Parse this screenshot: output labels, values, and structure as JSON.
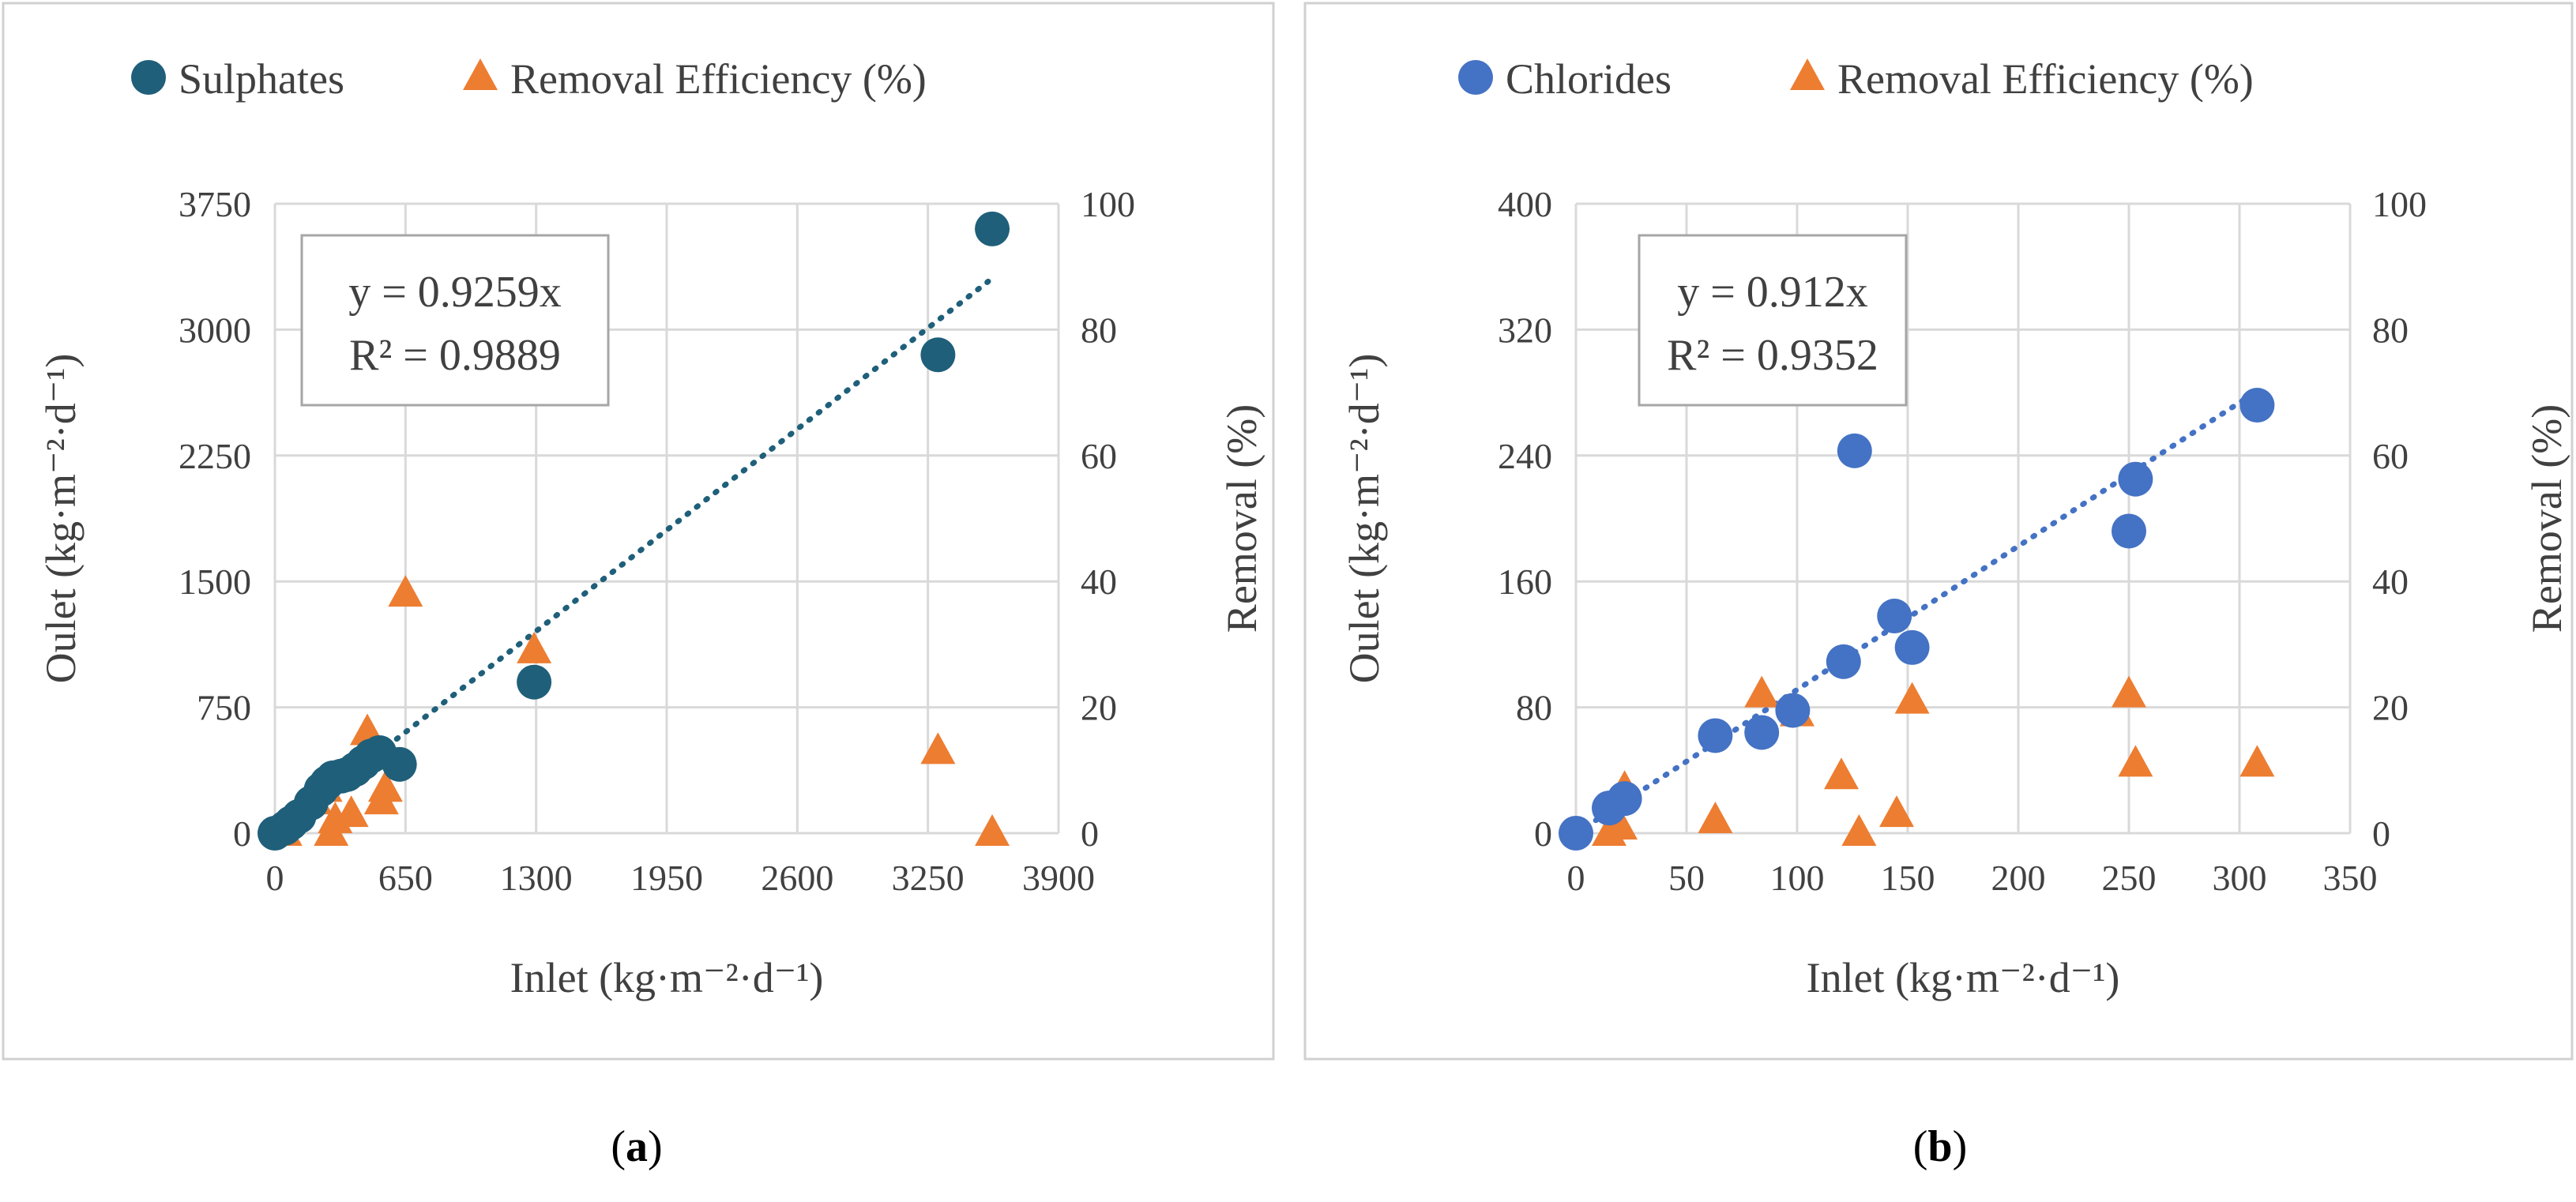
{
  "chart_data": [
    {
      "id": "a",
      "type": "scatter",
      "caption": "a",
      "xlabel": "Inlet (kg·m⁻²·d⁻¹)",
      "ylabel": "Oulet (kg·m⁻²·d⁻¹)",
      "y2label": "Removal (%)",
      "xlim": [
        0,
        3900
      ],
      "xticks": [
        0,
        650,
        1300,
        1950,
        2600,
        3250,
        3900
      ],
      "ylim": [
        0,
        3750
      ],
      "yticks": [
        0,
        750,
        1500,
        2250,
        3000,
        3750
      ],
      "y2lim": [
        0,
        100
      ],
      "y2ticks": [
        0,
        20,
        40,
        60,
        80,
        100
      ],
      "grid": true,
      "legend_position": "top",
      "trendline": {
        "slope": 0.9259,
        "x_start": 0,
        "x_end": 3550,
        "equation": "y = 0.9259x",
        "r2": "R² = 0.9889"
      },
      "series": [
        {
          "name": "Sulphates",
          "marker": "circle",
          "color": "#1f5f7a",
          "axis": "left",
          "x": [
            0,
            50,
            80,
            120,
            180,
            230,
            260,
            290,
            330,
            360,
            400,
            440,
            480,
            520,
            620,
            1290,
            3300,
            3570
          ],
          "y": [
            0,
            30,
            60,
            100,
            180,
            260,
            300,
            330,
            340,
            350,
            380,
            420,
            460,
            480,
            410,
            900,
            2850,
            3600
          ]
        },
        {
          "name": "Removal Efficiency (%)",
          "marker": "triangle",
          "color": "#ed7d31",
          "axis": "right",
          "x": [
            50,
            200,
            250,
            280,
            300,
            380,
            460,
            530,
            550,
            650,
            1290,
            3300,
            3570
          ],
          "y": [
            0,
            5,
            7,
            0,
            2,
            3,
            16,
            5,
            7,
            38,
            29,
            13,
            0
          ]
        }
      ]
    },
    {
      "id": "b",
      "type": "scatter",
      "caption": "b",
      "xlabel": "Inlet (kg·m⁻²·d⁻¹)",
      "ylabel": "Oulet  (kg·m⁻²·d⁻¹)",
      "y2label": "Removal (%)",
      "xlim": [
        0,
        350
      ],
      "xticks": [
        0,
        50,
        100,
        150,
        200,
        250,
        300,
        350
      ],
      "ylim": [
        0,
        400
      ],
      "yticks": [
        0,
        80,
        160,
        240,
        320,
        400
      ],
      "y2lim": [
        0,
        100
      ],
      "y2ticks": [
        0,
        20,
        40,
        60,
        80,
        100
      ],
      "grid": true,
      "legend_position": "top",
      "trendline": {
        "slope": 0.912,
        "x_start": 0,
        "x_end": 310,
        "equation": "y = 0.912x",
        "r2": "R² = 0.9352"
      },
      "series": [
        {
          "name": "Chlorides",
          "marker": "circle",
          "color": "#4472c4",
          "axis": "left",
          "x": [
            0,
            15,
            22,
            63,
            84,
            98,
            121,
            126,
            144,
            152,
            250,
            253,
            308
          ],
          "y": [
            0,
            16,
            22,
            62,
            64,
            78,
            109,
            243,
            138,
            118,
            192,
            225,
            272
          ]
        },
        {
          "name": "Removal Efficiency (%)",
          "marker": "triangle",
          "color": "#ed7d31",
          "axis": "right",
          "x": [
            15,
            20,
            22,
            63,
            84,
            100,
            120,
            128,
            145,
            152,
            250,
            253,
            308
          ],
          "y": [
            0,
            1,
            7,
            2,
            22,
            19,
            9,
            0,
            3,
            21,
            22,
            11,
            11
          ]
        }
      ]
    }
  ]
}
